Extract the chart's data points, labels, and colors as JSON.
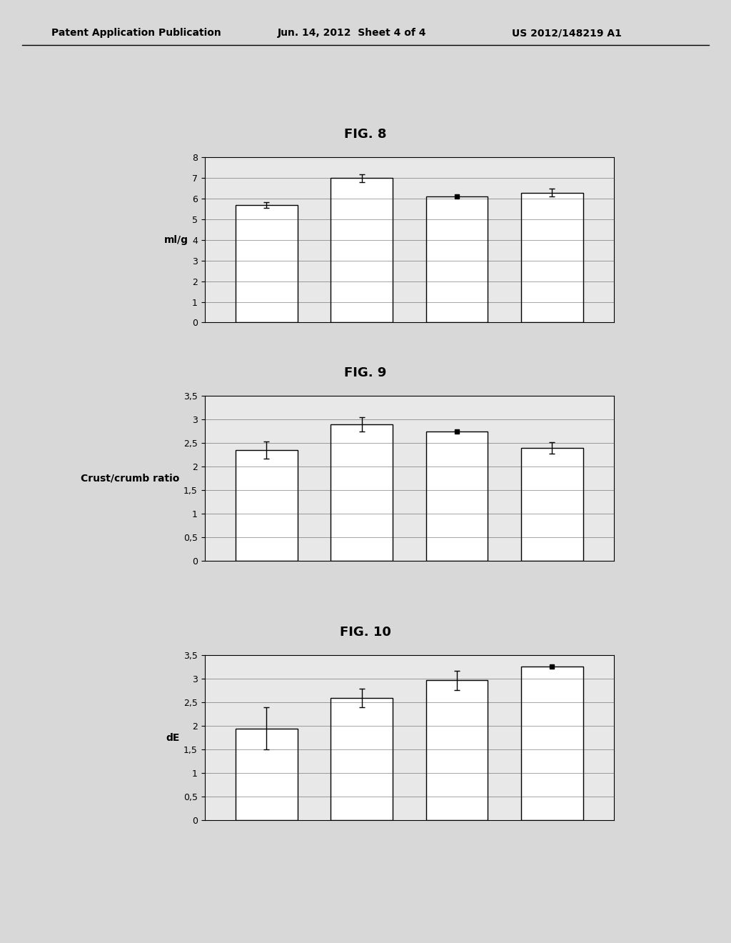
{
  "fig8": {
    "title": "FIG. 8",
    "ylabel": "ml/g",
    "ylim": [
      0,
      8
    ],
    "yticks": [
      0,
      1,
      2,
      3,
      4,
      5,
      6,
      7,
      8
    ],
    "values": [
      5.7,
      7.0,
      6.1,
      6.3
    ],
    "errors": [
      0.15,
      0.2,
      0.05,
      0.18
    ],
    "error_style": [
      "bar",
      "bar",
      "dot",
      "bar"
    ]
  },
  "fig9": {
    "title": "FIG. 9",
    "ylabel": "Crust/crumb ratio",
    "ylim": [
      0,
      3.5
    ],
    "yticks": [
      0,
      0.5,
      1,
      1.5,
      2,
      2.5,
      3,
      3.5
    ],
    "values": [
      2.35,
      2.9,
      2.75,
      2.4
    ],
    "errors": [
      0.18,
      0.15,
      0.18,
      0.12
    ],
    "error_style": [
      "bar",
      "bar",
      "dot",
      "bar"
    ]
  },
  "fig10": {
    "title": "FIG. 10",
    "ylabel": "dE",
    "ylim": [
      0,
      3.5
    ],
    "yticks": [
      0,
      0.5,
      1,
      1.5,
      2,
      2.5,
      3,
      3.5
    ],
    "values": [
      1.95,
      2.6,
      2.97,
      3.27
    ],
    "errors": [
      0.45,
      0.2,
      0.2,
      0.0
    ],
    "error_style": [
      "bar",
      "bar",
      "bar",
      "dot"
    ]
  },
  "bar_color": "#ffffff",
  "bar_edgecolor": "#000000",
  "background_color": "#d8d8d8",
  "bar_width": 0.65,
  "n_bars": 4,
  "header_left": "Patent Application Publication",
  "header_mid": "Jun. 14, 2012  Sheet 4 of 4",
  "header_right": "US 2012/148219 A1",
  "title_fontsize": 13,
  "ylabel_fontsize": 10,
  "tick_fontsize": 9
}
